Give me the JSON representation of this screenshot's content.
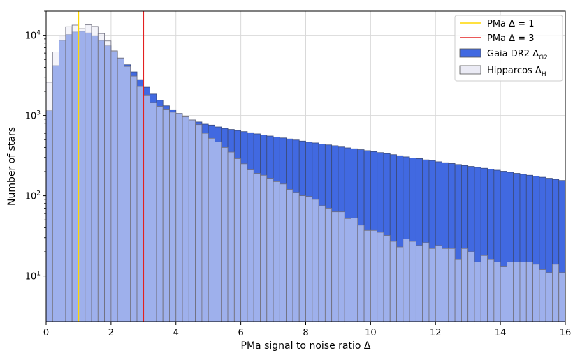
{
  "chart_data": {
    "type": "histogram",
    "xlabel": "PMa signal to noise ratio Δ",
    "ylabel": "Number of stars",
    "xlim": [
      0,
      16
    ],
    "ylim": [
      2.7,
      20000
    ],
    "yscale": "log",
    "grid": true,
    "legend_position": "top-right",
    "x_ticks": [
      0,
      2,
      4,
      6,
      8,
      10,
      12,
      14,
      16
    ],
    "y_ticks": [
      {
        "value": 10,
        "base": "10",
        "exp": "1"
      },
      {
        "value": 100,
        "base": "10",
        "exp": "2"
      },
      {
        "value": 1000,
        "base": "10",
        "exp": "3"
      },
      {
        "value": 10000,
        "base": "10",
        "exp": "4"
      }
    ],
    "bin_width": 0.2,
    "series": [
      {
        "name": "Gaia DR2 Δ",
        "name_sub": "G2",
        "color": "#4169e1",
        "values": [
          1150,
          4200,
          8600,
          10200,
          11000,
          11200,
          10700,
          9800,
          8600,
          7400,
          6300,
          5200,
          4300,
          3500,
          2800,
          2250,
          1850,
          1550,
          1320,
          1180,
          1060,
          960,
          880,
          830,
          780,
          760,
          720,
          690,
          670,
          650,
          630,
          610,
          590,
          570,
          555,
          540,
          525,
          510,
          495,
          480,
          465,
          455,
          440,
          430,
          420,
          405,
          395,
          385,
          375,
          365,
          355,
          345,
          335,
          325,
          315,
          305,
          295,
          290,
          280,
          275,
          265,
          258,
          252,
          245,
          238,
          232,
          226,
          220,
          214,
          208,
          202,
          196,
          190,
          185,
          180,
          175,
          170,
          165,
          160,
          155
        ]
      },
      {
        "name": "Hipparcos Δ",
        "name_sub": "H",
        "color": "#ebebf5",
        "values": [
          2600,
          6200,
          9800,
          12800,
          13400,
          12100,
          13500,
          12900,
          10500,
          8500,
          6400,
          5200,
          4100,
          3100,
          2300,
          1800,
          1450,
          1300,
          1200,
          1100,
          1050,
          960,
          880,
          770,
          600,
          520,
          470,
          400,
          350,
          290,
          250,
          210,
          190,
          180,
          165,
          150,
          140,
          120,
          110,
          100,
          98,
          90,
          75,
          70,
          63,
          63,
          52,
          53,
          43,
          37,
          37,
          35,
          32,
          27,
          23,
          29,
          27,
          24,
          26,
          22,
          24,
          22,
          22,
          16,
          22,
          20,
          15,
          18,
          16,
          15,
          13,
          15,
          15,
          15,
          15,
          14,
          12,
          11,
          14,
          11
        ]
      }
    ],
    "vlines": [
      {
        "x": 1,
        "label": "PMa Δ = 1",
        "color": "#ffd700"
      },
      {
        "x": 3,
        "label": "PMa Δ = 3",
        "color": "#e32020"
      }
    ]
  }
}
